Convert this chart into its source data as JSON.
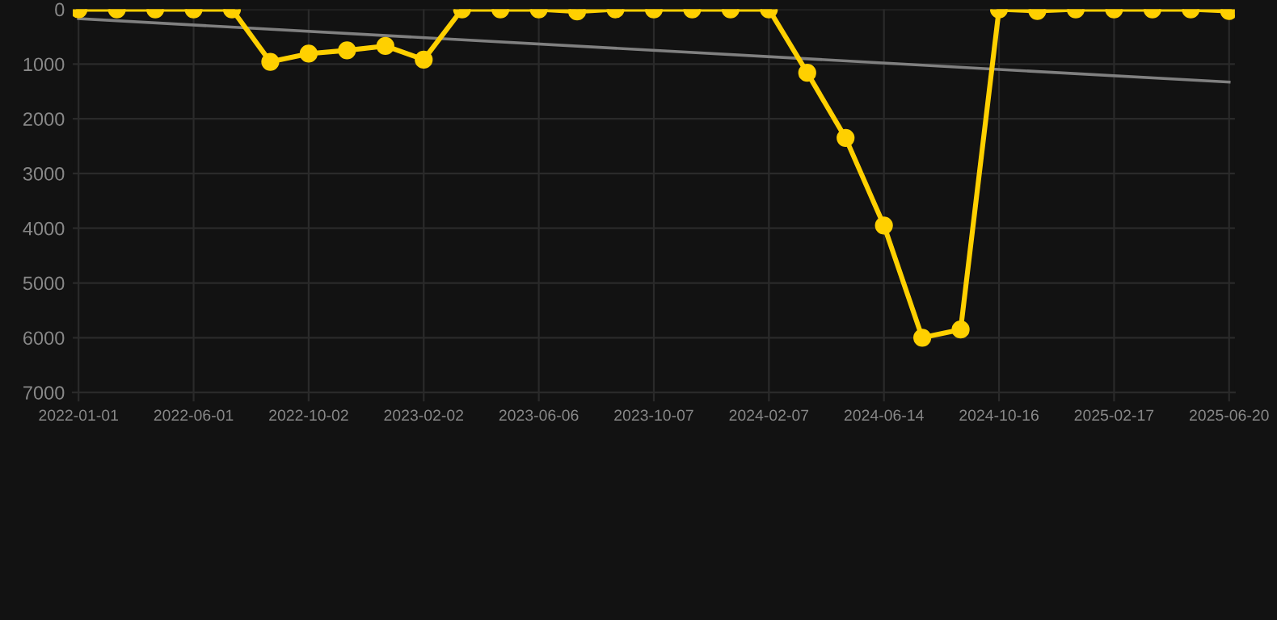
{
  "chart_data": {
    "type": "line",
    "categories": [
      "2022-01-01",
      null,
      null,
      "2022-06-01",
      null,
      null,
      "2022-10-02",
      null,
      null,
      "2023-02-02",
      null,
      null,
      "2023-06-06",
      null,
      null,
      "2023-10-07",
      null,
      null,
      "2024-02-07",
      null,
      null,
      "2024-06-14",
      null,
      null,
      "2024-10-16",
      null,
      null,
      "2025-02-17",
      null,
      null,
      "2025-06-20"
    ],
    "series": [
      {
        "color": "#ffd000",
        "marker": "circle",
        "values": [
          0,
          0,
          0,
          0,
          0,
          960,
          810,
          750,
          670,
          920,
          0,
          0,
          0,
          40,
          0,
          0,
          0,
          0,
          0,
          1160,
          2350,
          3950,
          6000,
          5850,
          0,
          30,
          0,
          0,
          0,
          0,
          30
        ]
      },
      {
        "type": "line",
        "color": "#808080",
        "marker": "none",
        "values": [
          170,
          null,
          null,
          null,
          null,
          null,
          null,
          null,
          null,
          null,
          null,
          null,
          null,
          null,
          null,
          null,
          null,
          null,
          null,
          null,
          null,
          null,
          null,
          null,
          null,
          null,
          null,
          null,
          null,
          null,
          1330
        ]
      }
    ],
    "ylim": [
      7000,
      0
    ],
    "yticks": [
      0,
      1000,
      2000,
      3000,
      4000,
      5000,
      6000,
      7000
    ],
    "grid": true
  }
}
